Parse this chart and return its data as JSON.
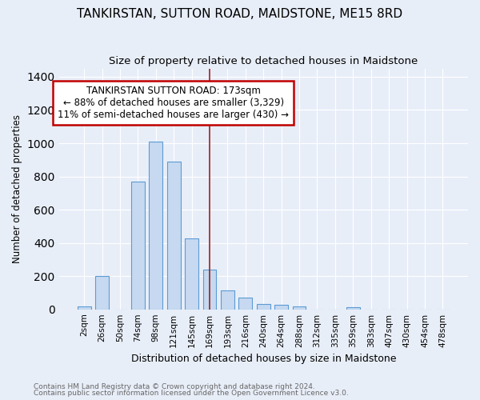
{
  "title": "TANKIRSTAN, SUTTON ROAD, MAIDSTONE, ME15 8RD",
  "subtitle": "Size of property relative to detached houses in Maidstone",
  "xlabel": "Distribution of detached houses by size in Maidstone",
  "ylabel": "Number of detached properties",
  "categories": [
    "2sqm",
    "26sqm",
    "50sqm",
    "74sqm",
    "98sqm",
    "121sqm",
    "145sqm",
    "169sqm",
    "193sqm",
    "216sqm",
    "240sqm",
    "264sqm",
    "288sqm",
    "312sqm",
    "335sqm",
    "359sqm",
    "383sqm",
    "407sqm",
    "430sqm",
    "454sqm",
    "478sqm"
  ],
  "values": [
    20,
    200,
    0,
    770,
    1010,
    890,
    425,
    240,
    115,
    70,
    30,
    25,
    18,
    0,
    0,
    12,
    0,
    0,
    0,
    0,
    0
  ],
  "bar_color": "#c6d9f0",
  "bar_edge_color": "#5b9bd5",
  "vline_color": "#9b2020",
  "annotation_title": "TANKIRSTAN SUTTON ROAD: 173sqm",
  "annotation_line1": "← 88% of detached houses are smaller (3,329)",
  "annotation_line2": "11% of semi-detached houses are larger (430) →",
  "annotation_box_color": "white",
  "annotation_box_edge": "#c00000",
  "ylim": [
    0,
    1450
  ],
  "yticks": [
    0,
    200,
    400,
    600,
    800,
    1000,
    1200,
    1400
  ],
  "footer1": "Contains HM Land Registry data © Crown copyright and database right 2024.",
  "footer2": "Contains public sector information licensed under the Open Government Licence v3.0.",
  "bg_color": "#e8eef8",
  "grid_color": "white",
  "title_fontsize": 11,
  "subtitle_fontsize": 9.5,
  "vline_index": 7
}
